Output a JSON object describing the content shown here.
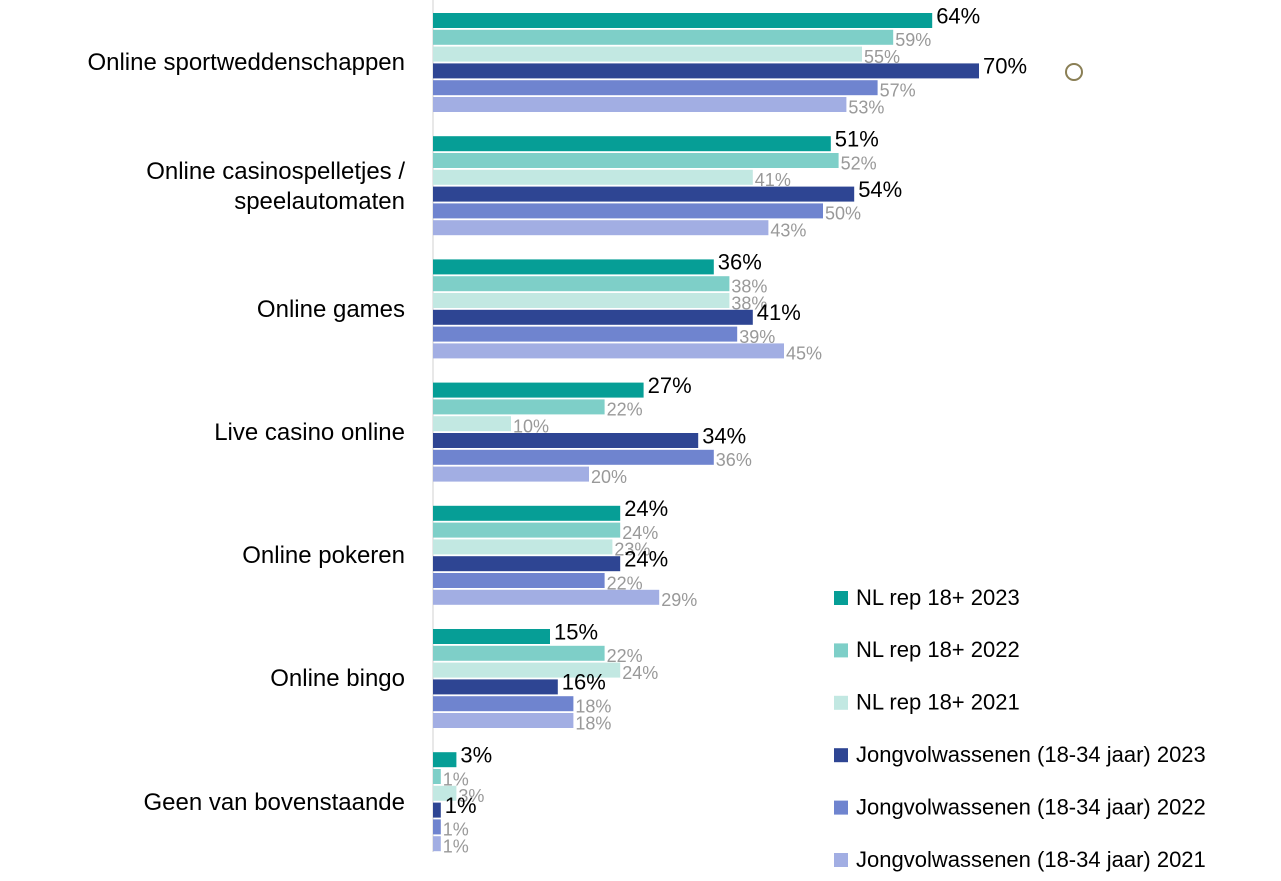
{
  "chart_data": {
    "type": "bar",
    "orientation": "horizontal",
    "categories": [
      "Online sportweddenschappen",
      "Online casinospelletjes / speelautomaten",
      "Online games",
      "Live casino online",
      "Online pokeren",
      "Online bingo",
      "Geen van bovenstaande"
    ],
    "xlim": [
      0,
      70
    ],
    "legend": "bottom-right",
    "series": [
      {
        "name": "NL rep 18+ 2023",
        "color": "#069e96",
        "values": [
          64,
          51,
          36,
          27,
          24,
          15,
          3
        ],
        "value_labels": [
          "64%",
          "51%",
          "36%",
          "27%",
          "24%",
          "15%",
          "3%"
        ]
      },
      {
        "name": "NL rep 18+ 2022",
        "color": "#7ecfc8",
        "values": [
          59,
          52,
          38,
          22,
          24,
          22,
          1
        ],
        "value_labels": [
          "59%",
          "52%",
          "38%",
          "22%",
          "24%",
          "22%",
          "1%"
        ]
      },
      {
        "name": "NL rep 18+ 2021",
        "color": "#c2e8e2",
        "values": [
          55,
          41,
          38,
          10,
          23,
          24,
          3
        ],
        "value_labels": [
          "55%",
          "41%",
          "38%",
          "10%",
          "23%",
          "24%",
          "3%"
        ]
      },
      {
        "name": "Jongvolwassenen (18-34 jaar) 2023",
        "color": "#2e4593",
        "values": [
          70,
          54,
          41,
          34,
          24,
          16,
          1
        ],
        "value_labels": [
          "70%",
          "54%",
          "41%",
          "34%",
          "24%",
          "16%",
          "1%"
        ]
      },
      {
        "name": "Jongvolwassenen (18-34 jaar) 2022",
        "color": "#6f84cf",
        "values": [
          57,
          50,
          39,
          36,
          22,
          18,
          1
        ],
        "value_labels": [
          "57%",
          "50%",
          "39%",
          "36%",
          "22%",
          "18%",
          "1%"
        ]
      },
      {
        "name": "Jongvolwassenen (18-34 jaar) 2021",
        "color": "#a2aee3",
        "values": [
          53,
          43,
          45,
          20,
          29,
          18,
          1
        ],
        "value_labels": [
          "53%",
          "43%",
          "45%",
          "20%",
          "29%",
          "18%",
          "1%"
        ]
      }
    ]
  }
}
